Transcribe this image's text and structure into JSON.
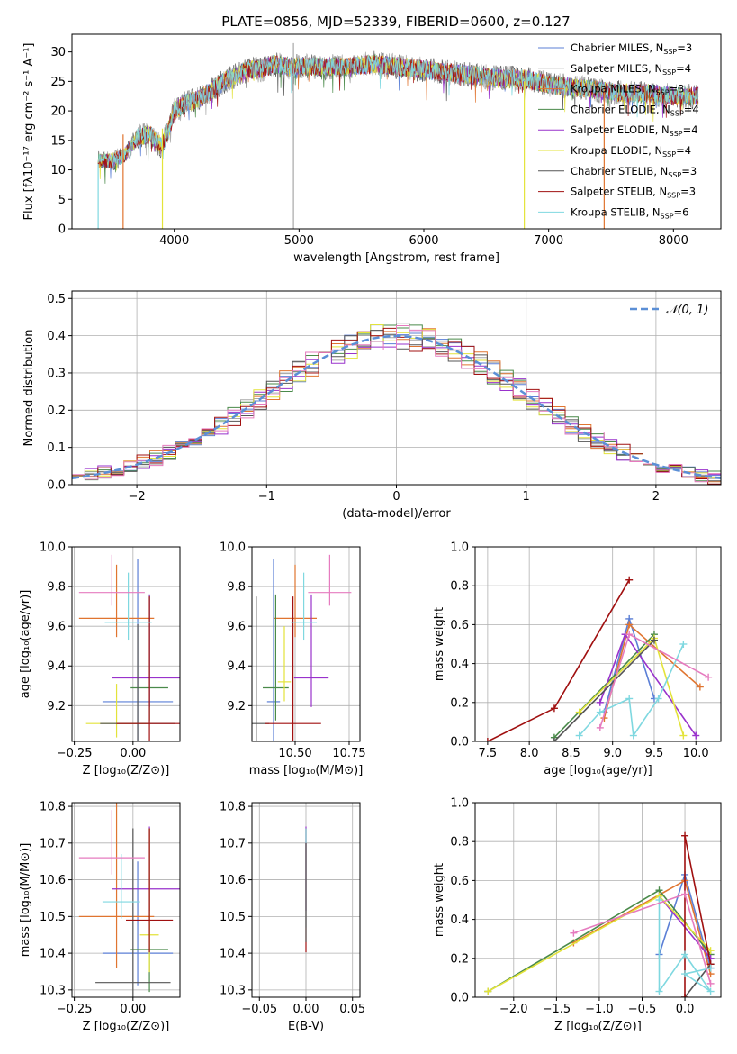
{
  "figure": {
    "title": "PLATE=0856, MJD=52339, FIBERID=0600, z=0.127"
  },
  "series_colors": [
    "#5b7fd6",
    "#a8a8a8",
    "#e07530",
    "#4a8a4a",
    "#9932cc",
    "#e3e33a",
    "#555555",
    "#a01010",
    "#7fd8e0",
    "#e67bbf"
  ],
  "chart_data": [
    {
      "type": "line",
      "title": "PLATE=0856, MJD=52339, FIBERID=0600, z=0.127",
      "xlabel": "wavelength [Angstrom, rest frame]",
      "ylabel": "Flux [fλ10⁻¹⁷ erg cm⁻² s⁻¹ A⁻¹]",
      "xlim": [
        3180,
        8380
      ],
      "ylim": [
        0,
        33
      ],
      "xticks": [
        4000,
        5000,
        6000,
        7000,
        8000
      ],
      "yticks": [
        0,
        5,
        10,
        15,
        20,
        25,
        30
      ],
      "legend": "upper right",
      "legend_entries": [
        {
          "label": "Chabrier MILES, N",
          "sub": "SSP",
          "suffix": "=3",
          "color": "#5b7fd6"
        },
        {
          "label": "Salpeter MILES, N",
          "sub": "SSP",
          "suffix": "=4",
          "color": "#a8a8a8"
        },
        {
          "label": "Kroupa MILES, N",
          "sub": "SSP",
          "suffix": "=3",
          "color": "#e07530"
        },
        {
          "label": "Chabrier ELODIE, N",
          "sub": "SSP",
          "suffix": "=4",
          "color": "#4a8a4a"
        },
        {
          "label": "Salpeter ELODIE, N",
          "sub": "SSP",
          "suffix": "=4",
          "color": "#9932cc"
        },
        {
          "label": "Kroupa ELODIE, N",
          "sub": "SSP",
          "suffix": "=4",
          "color": "#e3e33a"
        },
        {
          "label": "Chabrier STELIB, N",
          "sub": "SSP",
          "suffix": "=3",
          "color": "#555555"
        },
        {
          "label": "Salpeter STELIB, N",
          "sub": "SSP",
          "suffix": "=3",
          "color": "#a01010"
        },
        {
          "label": "Kroupa STELIB, N",
          "sub": "SSP",
          "suffix": "=6",
          "color": "#7fd8e0"
        }
      ],
      "continuum_x": [
        3390,
        3500,
        3600,
        3700,
        3800,
        3900,
        3950,
        4000,
        4100,
        4200,
        4300,
        4400,
        4500,
        4600,
        4700,
        4800,
        4900,
        5000,
        5200,
        5400,
        5600,
        5800,
        6000,
        6200,
        6400,
        6600,
        6800,
        7000,
        7200,
        7400,
        7600,
        7800,
        8000,
        8200
      ],
      "continuum_y": [
        11.5,
        11.5,
        12.5,
        15.5,
        16,
        14,
        16.5,
        20,
        21.5,
        22,
        23.5,
        25,
        26,
        27,
        27,
        28,
        27.5,
        27.5,
        27.5,
        27.5,
        28,
        27.5,
        27,
        26.5,
        26,
        25.5,
        25.5,
        24.5,
        24,
        23.5,
        23,
        23,
        22.5,
        22.5
      ],
      "noise_amplitude": 1.6,
      "dropouts": [
        {
          "x": 3390,
          "color": "#7fd8e0",
          "y_top": 11
        },
        {
          "x": 3590,
          "color": "#e07530",
          "y_top": 16
        },
        {
          "x": 3905,
          "color": "#e3e33a",
          "y_top": 17
        },
        {
          "x": 4955,
          "color": "#a8a8a8",
          "y_top": 31.5
        },
        {
          "x": 6805,
          "color": "#e3e33a",
          "y_top": 25
        },
        {
          "x": 7445,
          "color": "#e07530",
          "y_top": 24
        }
      ]
    },
    {
      "type": "histogram",
      "xlabel": "(data-model)/error",
      "ylabel": "Normed distribution",
      "xlim": [
        -2.5,
        2.5
      ],
      "ylim": [
        0,
        0.52
      ],
      "xticks": [
        -2,
        -1,
        0,
        1,
        2
      ],
      "yticks": [
        0.0,
        0.1,
        0.2,
        0.3,
        0.4,
        0.5
      ],
      "legend": "upper right",
      "legend_entries": [
        {
          "label": "𝒩(0, 1)",
          "color": "#5b8fd6"
        }
      ],
      "bin_width": 0.1,
      "bin_start": -2.5,
      "gaussian": {
        "mu": 0,
        "sigma": 1
      }
    },
    {
      "type": "scatter",
      "subtype": "errorbar",
      "xlabel": "Z [log₁₀(Z/Z⊙)]",
      "ylabel": "age  [log₁₀(age/yr)]",
      "xlim": [
        -0.26,
        0.2
      ],
      "ylim": [
        9.02,
        10.0
      ],
      "xticks": [
        -0.25,
        0.0
      ],
      "yticks": [
        9.2,
        9.4,
        9.6,
        9.8,
        10.0
      ],
      "points": [
        {
          "x": 0.02,
          "y": 9.22,
          "xerr": 0.15,
          "yerr": 0.72,
          "color": "#5b7fd6"
        },
        {
          "x": -0.07,
          "y": 9.64,
          "xerr": 0.16,
          "yerr": 0.27,
          "color": "#e07530"
        },
        {
          "x": 0.07,
          "y": 9.29,
          "xerr": 0.08,
          "yerr": 0.47,
          "color": "#4a8a4a"
        },
        {
          "x": 0.07,
          "y": 9.34,
          "xerr": 0.16,
          "yerr": 0.42,
          "color": "#9932cc"
        },
        {
          "x": -0.07,
          "y": 9.11,
          "xerr": 0.13,
          "yerr": 0.2,
          "color": "#e3e33a"
        },
        {
          "x": 0.02,
          "y": 9.11,
          "xerr": 0.16,
          "yerr": 0.5,
          "color": "#555555"
        },
        {
          "x": 0.07,
          "y": 9.11,
          "xerr": 0.14,
          "yerr": 0.64,
          "color": "#a01010"
        },
        {
          "x": -0.02,
          "y": 9.62,
          "xerr": 0.1,
          "yerr": 0.25,
          "color": "#7fd8e0"
        },
        {
          "x": -0.09,
          "y": 9.77,
          "xerr": 0.14,
          "yerr": 0.19,
          "color": "#e67bbf"
        }
      ]
    },
    {
      "type": "scatter",
      "subtype": "errorbar",
      "xlabel": "mass [log₁₀(M/M⊙)]",
      "ylabel": "",
      "xlim": [
        10.3,
        10.8
      ],
      "ylim": [
        9.02,
        10.0
      ],
      "xticks": [
        10.5,
        10.75
      ],
      "yticks": [
        9.2,
        9.4,
        9.6,
        9.8,
        10.0
      ],
      "points": [
        {
          "x": 10.4,
          "y": 9.22,
          "xerr": 0.03,
          "yerr": 0.72,
          "color": "#5b7fd6"
        },
        {
          "x": 10.5,
          "y": 9.64,
          "xerr": 0.1,
          "yerr": 0.27,
          "color": "#e07530"
        },
        {
          "x": 10.41,
          "y": 9.29,
          "xerr": 0.06,
          "yerr": 0.47,
          "color": "#4a8a4a"
        },
        {
          "x": 10.575,
          "y": 9.34,
          "xerr": 0.08,
          "yerr": 0.42,
          "color": "#9932cc"
        },
        {
          "x": 10.45,
          "y": 9.32,
          "xerr": 0.03,
          "yerr": 0.28,
          "color": "#e3e33a"
        },
        {
          "x": 10.32,
          "y": 9.11,
          "xerr": 0.06,
          "yerr": 0.64,
          "color": "#555555"
        },
        {
          "x": 10.49,
          "y": 9.11,
          "xerr": 0.13,
          "yerr": 0.64,
          "color": "#a01010"
        },
        {
          "x": 10.54,
          "y": 9.62,
          "xerr": 0.06,
          "yerr": 0.25,
          "color": "#7fd8e0"
        },
        {
          "x": 10.66,
          "y": 9.77,
          "xerr": 0.1,
          "yerr": 0.19,
          "color": "#e67bbf"
        }
      ]
    },
    {
      "type": "line",
      "xlabel": "age  [log₁₀(age/yr)]",
      "ylabel": "mass weight",
      "xlim": [
        7.35,
        10.3
      ],
      "ylim": [
        0,
        1
      ],
      "xticks": [
        7.5,
        8.0,
        8.5,
        9.0,
        9.5,
        10.0
      ],
      "yticks": [
        0.0,
        0.2,
        0.4,
        0.6,
        0.8,
        1.0
      ],
      "series": [
        {
          "color": "#5b7fd6",
          "x": [
            8.9,
            9.2,
            9.5
          ],
          "y": [
            0.15,
            0.63,
            0.22
          ]
        },
        {
          "color": "#e07530",
          "x": [
            8.9,
            9.2,
            10.05
          ],
          "y": [
            0.12,
            0.6,
            0.28
          ]
        },
        {
          "color": "#4a8a4a",
          "x": [
            8.3,
            9.5
          ],
          "y": [
            0.02,
            0.55
          ]
        },
        {
          "color": "#9932cc",
          "x": [
            8.85,
            9.15,
            10.0
          ],
          "y": [
            0.2,
            0.55,
            0.03
          ]
        },
        {
          "color": "#e3e33a",
          "x": [
            8.6,
            9.5,
            9.85
          ],
          "y": [
            0.15,
            0.53,
            0.03
          ]
        },
        {
          "color": "#555555",
          "x": [
            8.3,
            9.5
          ],
          "y": [
            0.0,
            0.52
          ]
        },
        {
          "color": "#a01010",
          "x": [
            7.5,
            8.3,
            9.2
          ],
          "y": [
            0.0,
            0.17,
            0.83
          ]
        },
        {
          "color": "#7fd8e0",
          "x": [
            8.6,
            8.85,
            9.2,
            9.25,
            9.55,
            9.85
          ],
          "y": [
            0.03,
            0.15,
            0.22,
            0.03,
            0.22,
            0.5
          ]
        },
        {
          "color": "#e67bbf",
          "x": [
            8.85,
            9.2,
            10.15
          ],
          "y": [
            0.07,
            0.55,
            0.33
          ]
        }
      ]
    },
    {
      "type": "scatter",
      "subtype": "errorbar",
      "xlabel": "Z [log₁₀(Z/Z⊙)]",
      "ylabel": "mass [log₁₀(M/M⊙)]",
      "xlim": [
        -0.26,
        0.2
      ],
      "ylim": [
        10.28,
        10.81
      ],
      "xticks": [
        -0.25,
        0.0
      ],
      "yticks": [
        10.3,
        10.4,
        10.5,
        10.6,
        10.7,
        10.8
      ],
      "points": [
        {
          "x": 0.02,
          "y": 10.4,
          "xerr": 0.15,
          "yerr": 0.25,
          "color": "#5b7fd6"
        },
        {
          "x": -0.07,
          "y": 10.5,
          "xerr": 0.16,
          "yerr": 0.4,
          "color": "#e07530"
        },
        {
          "x": 0.07,
          "y": 10.41,
          "xerr": 0.08,
          "yerr": 0.33,
          "color": "#4a8a4a"
        },
        {
          "x": 0.07,
          "y": 10.575,
          "xerr": 0.16,
          "yerr": 0.17,
          "color": "#9932cc"
        },
        {
          "x": 0.07,
          "y": 10.45,
          "xerr": 0.04,
          "yerr": 0.29,
          "color": "#e3e33a"
        },
        {
          "x": 0.0,
          "y": 10.32,
          "xerr": 0.16,
          "yerr": 0.42,
          "color": "#555555"
        },
        {
          "x": 0.07,
          "y": 10.49,
          "xerr": 0.1,
          "yerr": 0.25,
          "color": "#a01010"
        },
        {
          "x": -0.05,
          "y": 10.54,
          "xerr": 0.08,
          "yerr": 0.13,
          "color": "#7fd8e0"
        },
        {
          "x": -0.09,
          "y": 10.66,
          "xerr": 0.14,
          "yerr": 0.13,
          "color": "#e67bbf"
        }
      ]
    },
    {
      "type": "scatter",
      "subtype": "errorbar",
      "xlabel": "E(B-V)",
      "ylabel": "",
      "xlim": [
        -0.058,
        0.058
      ],
      "ylim": [
        10.28,
        10.81
      ],
      "xticks": [
        -0.05,
        0.0,
        0.05
      ],
      "yticks": [
        10.3,
        10.4,
        10.5,
        10.6,
        10.7,
        10.8
      ],
      "points": [
        {
          "x": 0.0,
          "y": 10.575,
          "xerr": 0.0,
          "yerr": 0.17,
          "color": "#9932cc"
        },
        {
          "x": 0.0,
          "y": 10.49,
          "xerr": 0.0,
          "yerr": 0.25,
          "color": "#a01010"
        },
        {
          "x": 0.0,
          "y": 10.54,
          "xerr": 0.0,
          "yerr": 0.2,
          "color": "#7fd8e0"
        },
        {
          "x": 0.0,
          "y": 10.5,
          "xerr": 0.0,
          "yerr": 0.2,
          "color": "#555555"
        }
      ]
    },
    {
      "type": "line",
      "xlabel": "Z [log₁₀(Z/Z⊙)]",
      "ylabel": "mass weight",
      "xlim": [
        -2.45,
        0.42
      ],
      "ylim": [
        0,
        1
      ],
      "xticks": [
        -2.0,
        -1.5,
        -1.0,
        -0.5,
        0.0
      ],
      "yticks": [
        0.0,
        0.2,
        0.4,
        0.6,
        0.8,
        1.0
      ],
      "series": [
        {
          "color": "#5b7fd6",
          "x": [
            -0.3,
            0.0,
            0.3
          ],
          "y": [
            0.22,
            0.63,
            0.15
          ]
        },
        {
          "color": "#e07530",
          "x": [
            -1.3,
            0.0,
            0.3
          ],
          "y": [
            0.28,
            0.6,
            0.12
          ]
        },
        {
          "color": "#4a8a4a",
          "x": [
            -2.3,
            -0.3,
            0.3
          ],
          "y": [
            0.03,
            0.55,
            0.22
          ]
        },
        {
          "color": "#9932cc",
          "x": [
            -0.3,
            0.3
          ],
          "y": [
            0.52,
            0.2
          ]
        },
        {
          "color": "#e3e33a",
          "x": [
            -2.3,
            -0.3,
            0.3
          ],
          "y": [
            0.03,
            0.52,
            0.24
          ]
        },
        {
          "color": "#555555",
          "x": [
            0.0,
            0.3
          ],
          "y": [
            0.0,
            0.17
          ]
        },
        {
          "color": "#a01010",
          "x": [
            0.0,
            0.0,
            0.3
          ],
          "y": [
            0.0,
            0.83,
            0.17
          ]
        },
        {
          "color": "#7fd8e0",
          "x": [
            -0.3,
            -0.3,
            0.0,
            0.3,
            0.0,
            0.3
          ],
          "y": [
            0.5,
            0.03,
            0.22,
            0.03,
            0.12,
            0.15
          ]
        },
        {
          "color": "#e67bbf",
          "x": [
            -1.3,
            0.0,
            0.3
          ],
          "y": [
            0.33,
            0.53,
            0.07
          ]
        }
      ]
    }
  ]
}
